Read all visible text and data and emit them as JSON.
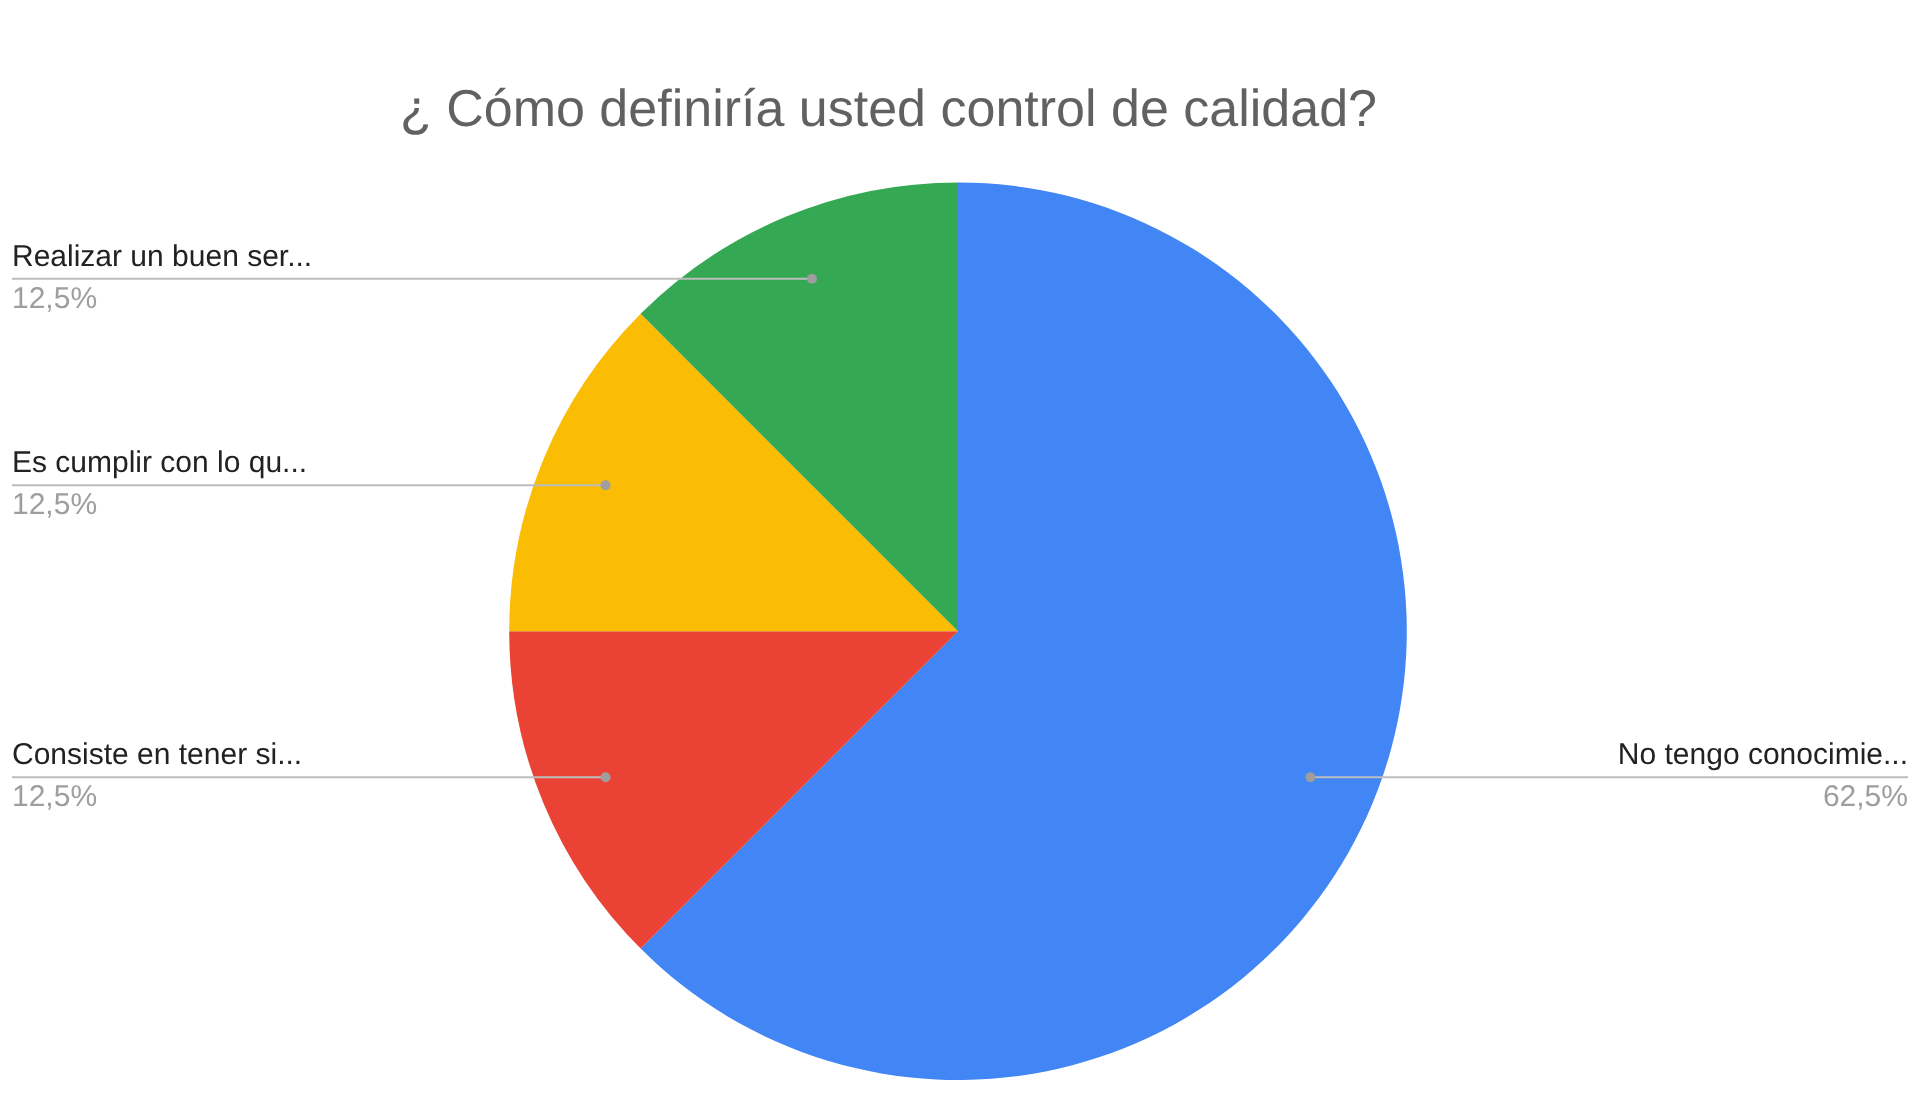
{
  "chart_data": {
    "type": "pie",
    "title": "¿ Cómo definiría usted control de calidad?",
    "categories": [
      "No tengo conocimie...",
      "Consiste en tener si...",
      "Es cumplir con lo qu...",
      "Realizar un buen ser..."
    ],
    "values": [
      62.5,
      12.5,
      12.5,
      12.5
    ],
    "colors": [
      "#4285f4",
      "#ea4335",
      "#fbbc04",
      "#34a853"
    ],
    "value_labels": [
      "62,5%",
      "12,5%",
      "12,5%",
      "12,5%"
    ],
    "legend": false
  }
}
